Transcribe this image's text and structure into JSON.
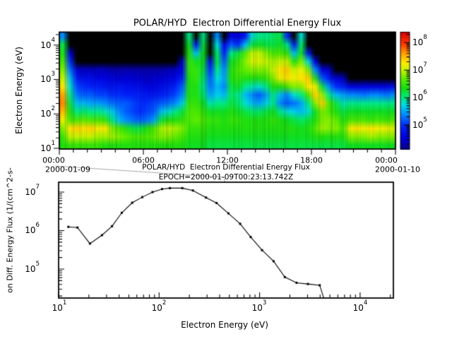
{
  "page": {
    "background": "#ffffff",
    "foreground": "#000000",
    "connector_color": "#a8a8a8"
  },
  "top_plot": {
    "title": "POLAR/HYD  Electron Differential Energy Flux",
    "ylabel": "Electron Energy (eV)",
    "yticks": [
      {
        "base": "10",
        "exp": "1"
      },
      {
        "base": "10",
        "exp": "2"
      },
      {
        "base": "10",
        "exp": "3"
      },
      {
        "base": "10",
        "exp": "4"
      }
    ],
    "xticks": [
      "00:00",
      "06:00",
      "12:00",
      "18:00",
      "00:00"
    ],
    "date_left": "2000-01-09",
    "date_right": "2000-01-10"
  },
  "colorbar": {
    "ticks": [
      {
        "base": "10",
        "exp": "5"
      },
      {
        "base": "10",
        "exp": "6"
      },
      {
        "base": "10",
        "exp": "7"
      },
      {
        "base": "10",
        "exp": "8"
      }
    ]
  },
  "bottom_plot": {
    "title_line1": "POLAR/HYD  Electron Differential Energy Flux",
    "title_line2": "EPOCH=2000-01-09T00:23:13.742Z",
    "xlabel": "Electron Energy (eV)",
    "ylabel": "on Diff. Energy Flux (1/(cm^2-s-",
    "xticks": [
      {
        "base": "10",
        "exp": "1"
      },
      {
        "base": "10",
        "exp": "2"
      },
      {
        "base": "10",
        "exp": "3"
      },
      {
        "base": "10",
        "exp": "4"
      }
    ],
    "yticks": [
      {
        "base": "10",
        "exp": "5"
      },
      {
        "base": "10",
        "exp": "6"
      },
      {
        "base": "10",
        "exp": "7"
      }
    ]
  },
  "colormap": {
    "stops": [
      [
        0.0,
        10,
        0,
        140
      ],
      [
        0.1,
        0,
        0,
        220
      ],
      [
        0.2,
        0,
        40,
        255
      ],
      [
        0.3,
        0,
        140,
        255
      ],
      [
        0.38,
        0,
        220,
        230
      ],
      [
        0.45,
        0,
        235,
        120
      ],
      [
        0.52,
        20,
        220,
        20
      ],
      [
        0.6,
        90,
        235,
        0
      ],
      [
        0.68,
        200,
        245,
        0
      ],
      [
        0.74,
        255,
        235,
        0
      ],
      [
        0.82,
        255,
        160,
        0
      ],
      [
        0.9,
        255,
        60,
        0
      ],
      [
        1.0,
        215,
        0,
        0
      ]
    ]
  },
  "chart_data": [
    {
      "type": "heatmap",
      "title": "POLAR/HYD  Electron Differential Energy Flux",
      "ylabel": "Electron Energy (eV)",
      "x_axis": {
        "range_hours": [
          0,
          24
        ],
        "major_tick_labels": [
          "00:00",
          "06:00",
          "12:00",
          "18:00",
          "00:00"
        ],
        "minor_tick_hours": 1,
        "date_start": "2000-01-09",
        "date_end": "2000-01-10"
      },
      "y_axis": {
        "log10_range": [
          1.0,
          4.37
        ],
        "major_ticks_log10": [
          1,
          2,
          3,
          4
        ]
      },
      "colorbar": {
        "log10_range": [
          4.13,
          8.38
        ],
        "major_ticks_log10": [
          5,
          6,
          7,
          8
        ],
        "style": "rainbow"
      },
      "no_data_color": "black",
      "time_bin_hours": 0.5,
      "grid_log10_flux": [
        [
          5.4,
          6.2,
          6.4,
          6.6,
          6.8,
          7.0,
          7.3,
          7.6,
          7.7,
          7.5,
          7.2,
          6.8,
          6.5,
          6.4
        ],
        [
          null,
          null,
          4.5,
          5.0,
          5.3,
          5.6,
          5.8,
          6.0,
          6.2,
          6.4,
          6.6,
          7.3,
          7.0,
          6.5
        ],
        [
          null,
          null,
          null,
          null,
          4.5,
          4.8,
          5.1,
          5.3,
          5.6,
          6.0,
          6.6,
          7.4,
          7.0,
          6.5
        ],
        [
          null,
          null,
          null,
          null,
          4.4,
          4.7,
          5.0,
          5.2,
          5.6,
          6.1,
          6.7,
          7.3,
          7.0,
          6.5
        ],
        [
          null,
          null,
          null,
          null,
          4.4,
          4.7,
          4.9,
          5.2,
          5.5,
          6.0,
          6.6,
          7.4,
          7.0,
          6.5
        ],
        [
          null,
          null,
          null,
          null,
          4.4,
          4.6,
          4.9,
          5.1,
          5.5,
          6.0,
          6.6,
          7.2,
          6.9,
          6.5
        ],
        [
          null,
          null,
          null,
          null,
          4.4,
          4.6,
          4.8,
          5.1,
          5.4,
          5.9,
          6.5,
          7.3,
          6.9,
          6.4
        ],
        [
          null,
          null,
          null,
          null,
          4.3,
          4.6,
          4.8,
          5.0,
          5.3,
          5.7,
          6.0,
          6.8,
          6.9,
          6.4
        ],
        [
          null,
          null,
          null,
          null,
          4.3,
          4.5,
          4.8,
          5.0,
          5.2,
          5.4,
          5.6,
          6.6,
          6.8,
          6.4
        ],
        [
          null,
          null,
          null,
          null,
          4.3,
          4.5,
          4.7,
          4.9,
          5.2,
          5.2,
          5.4,
          6.4,
          6.7,
          6.4
        ],
        [
          null,
          null,
          null,
          null,
          4.3,
          4.5,
          4.7,
          4.9,
          5.1,
          5.1,
          5.3,
          6.2,
          6.6,
          6.4
        ],
        [
          null,
          null,
          null,
          null,
          4.3,
          4.5,
          4.7,
          4.9,
          5.0,
          5.0,
          5.2,
          6.2,
          6.6,
          6.4
        ],
        [
          null,
          null,
          null,
          null,
          4.3,
          4.4,
          4.6,
          4.8,
          5.0,
          5.1,
          5.3,
          6.4,
          6.6,
          6.4
        ],
        [
          null,
          null,
          null,
          null,
          4.3,
          4.5,
          4.6,
          4.8,
          5.1,
          5.2,
          5.5,
          6.6,
          6.7,
          6.4
        ],
        [
          null,
          null,
          null,
          null,
          4.3,
          4.5,
          4.7,
          4.9,
          5.2,
          5.6,
          6.2,
          6.9,
          6.8,
          6.4
        ],
        [
          null,
          null,
          null,
          null,
          4.4,
          4.6,
          4.8,
          5.0,
          5.3,
          5.8,
          6.4,
          7.0,
          6.8,
          6.4
        ],
        [
          null,
          null,
          null,
          null,
          4.4,
          4.6,
          4.9,
          5.1,
          5.4,
          6.0,
          6.4,
          6.9,
          6.7,
          6.4
        ],
        [
          null,
          null,
          null,
          4.4,
          4.6,
          4.9,
          5.2,
          5.4,
          5.7,
          6.2,
          6.5,
          6.8,
          6.6,
          6.4
        ],
        [
          6.0,
          6.3,
          6.4,
          6.5,
          6.5,
          6.4,
          6.4,
          6.4,
          6.5,
          6.6,
          6.6,
          6.5,
          6.4,
          6.3
        ],
        [
          null,
          4.8,
          5.6,
          6.3,
          6.5,
          6.5,
          6.4,
          6.4,
          6.5,
          6.6,
          6.7,
          6.5,
          6.4,
          6.3
        ],
        [
          6.0,
          6.2,
          6.3,
          6.3,
          6.2,
          6.1,
          6.0,
          6.1,
          6.3,
          6.5,
          6.6,
          6.5,
          6.4,
          6.3
        ],
        [
          null,
          null,
          null,
          4.6,
          5.0,
          5.2,
          5.3,
          5.5,
          5.9,
          6.3,
          6.5,
          6.4,
          6.3,
          6.2
        ],
        [
          5.4,
          5.8,
          6.1,
          6.2,
          6.0,
          5.8,
          5.6,
          5.7,
          6.0,
          6.3,
          6.5,
          6.4,
          6.3,
          6.2
        ],
        [
          null,
          4.6,
          4.9,
          5.2,
          5.4,
          5.5,
          5.4,
          5.6,
          6.0,
          6.3,
          6.4,
          6.4,
          6.3,
          6.2
        ],
        [
          4.6,
          5.2,
          6.0,
          6.3,
          6.4,
          6.4,
          6.2,
          6.1,
          6.2,
          6.4,
          6.5,
          6.4,
          6.3,
          6.2
        ],
        [
          4.5,
          5.0,
          6.2,
          6.5,
          6.6,
          6.5,
          6.3,
          6.0,
          6.1,
          6.3,
          6.5,
          6.4,
          6.3,
          6.2
        ],
        [
          4.8,
          5.6,
          6.6,
          6.8,
          6.7,
          6.4,
          6.0,
          5.6,
          5.8,
          6.2,
          6.4,
          6.4,
          6.3,
          6.2
        ],
        [
          5.8,
          6.2,
          7.0,
          7.1,
          6.8,
          6.4,
          5.9,
          5.4,
          5.6,
          6.1,
          6.4,
          6.4,
          6.3,
          6.2
        ],
        [
          6.0,
          6.3,
          7.0,
          7.1,
          6.8,
          6.4,
          5.8,
          5.2,
          5.5,
          6.1,
          6.4,
          6.4,
          6.3,
          6.2
        ],
        [
          6.0,
          6.2,
          6.8,
          7.0,
          6.8,
          6.5,
          6.0,
          5.5,
          5.7,
          6.2,
          6.4,
          6.4,
          6.3,
          6.2
        ],
        [
          6.1,
          6.2,
          6.6,
          6.9,
          7.0,
          6.8,
          6.4,
          6.0,
          6.0,
          6.3,
          6.5,
          6.4,
          6.3,
          6.2
        ],
        [
          6.2,
          6.3,
          6.6,
          7.0,
          7.3,
          7.2,
          6.4,
          5.6,
          5.4,
          6.0,
          6.4,
          6.4,
          6.3,
          6.2
        ],
        [
          5.0,
          6.0,
          6.5,
          7.0,
          7.4,
          7.3,
          6.6,
          5.4,
          5.2,
          5.8,
          6.3,
          6.4,
          6.3,
          6.2
        ],
        [
          null,
          4.8,
          5.6,
          6.4,
          7.0,
          7.2,
          6.8,
          5.8,
          5.3,
          5.7,
          6.2,
          6.4,
          6.3,
          6.2
        ],
        [
          5.8,
          6.1,
          6.3,
          6.8,
          7.2,
          7.3,
          6.8,
          6.0,
          5.5,
          5.6,
          6.1,
          6.3,
          6.3,
          6.2
        ],
        [
          null,
          null,
          4.8,
          5.8,
          6.8,
          7.4,
          7.3,
          6.6,
          6.0,
          5.8,
          6.2,
          6.4,
          6.3,
          6.2
        ],
        [
          null,
          null,
          null,
          4.6,
          5.4,
          6.4,
          7.2,
          7.4,
          6.8,
          6.3,
          6.4,
          6.6,
          6.4,
          6.2
        ],
        [
          null,
          null,
          null,
          null,
          4.6,
          5.2,
          6.2,
          6.9,
          7.4,
          6.8,
          6.8,
          6.9,
          6.4,
          6.2
        ],
        [
          null,
          null,
          null,
          null,
          4.4,
          4.8,
          5.4,
          6.0,
          6.6,
          6.6,
          6.8,
          6.8,
          6.4,
          6.2
        ],
        [
          null,
          null,
          null,
          null,
          null,
          4.5,
          5.0,
          5.6,
          6.2,
          6.4,
          6.7,
          6.8,
          6.4,
          6.2
        ],
        [
          null,
          null,
          null,
          null,
          null,
          4.4,
          4.9,
          5.5,
          5.9,
          6.2,
          6.4,
          6.6,
          6.4,
          6.2
        ],
        [
          null,
          null,
          null,
          null,
          null,
          null,
          4.6,
          5.4,
          6.0,
          6.3,
          6.6,
          7.2,
          6.8,
          6.3
        ],
        [
          null,
          null,
          null,
          null,
          null,
          null,
          4.6,
          5.4,
          6.0,
          6.3,
          6.6,
          7.3,
          6.8,
          6.3
        ],
        [
          null,
          null,
          null,
          null,
          null,
          null,
          4.6,
          5.3,
          6.0,
          6.3,
          6.6,
          7.2,
          6.8,
          6.3
        ],
        [
          null,
          null,
          null,
          null,
          null,
          null,
          4.6,
          5.4,
          6.0,
          6.3,
          6.5,
          7.3,
          6.9,
          6.3
        ],
        [
          null,
          null,
          null,
          null,
          null,
          null,
          4.6,
          5.4,
          6.0,
          6.3,
          6.6,
          7.2,
          6.8,
          6.3
        ],
        [
          null,
          null,
          null,
          null,
          null,
          null,
          4.6,
          5.3,
          6.0,
          6.3,
          6.5,
          7.2,
          6.8,
          6.3
        ],
        [
          null,
          null,
          null,
          null,
          null,
          null,
          4.7,
          5.4,
          6.0,
          6.3,
          6.6,
          7.1,
          6.8,
          6.3
        ]
      ]
    },
    {
      "type": "line",
      "title": "POLAR/HYD  Electron Differential Energy Flux",
      "subtitle": "EPOCH=2000-01-09T00:23:13.742Z",
      "xlabel": "Electron Energy (eV)",
      "ylabel": "on Diff. Energy Flux (1/(cm^2-s-",
      "x_scale": "log",
      "y_scale": "log",
      "xlim": [
        10,
        21400
      ],
      "ylim": [
        17700,
        18100000
      ],
      "marker": "square",
      "x": [
        12.5,
        15.4,
        20.5,
        27,
        34,
        42.5,
        54,
        68,
        86,
        107,
        128,
        170,
        217,
        293,
        373,
        489,
        640,
        815,
        1057,
        1377,
        1782,
        2333,
        3026,
        3963,
        4600
      ],
      "y": [
        1250000,
        1200000,
        460000,
        760000,
        1300000,
        2900000,
        5300000,
        7400000,
        10000000,
        12000000,
        12700000,
        12700000,
        11000000,
        7200000,
        5200000,
        2800000,
        1500000,
        680000,
        310000,
        160000,
        62000,
        44000,
        41000,
        38000,
        11000
      ]
    }
  ]
}
